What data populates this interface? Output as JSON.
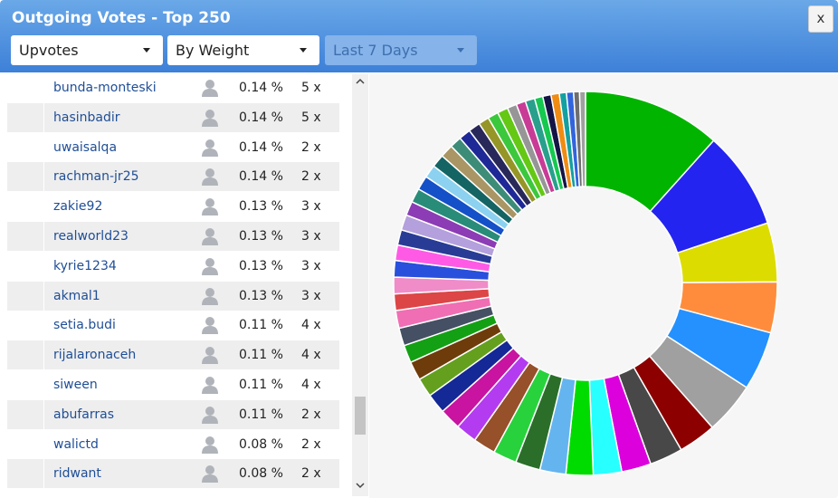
{
  "header": {
    "title": "Outgoing Votes - Top 250",
    "close": "x"
  },
  "filters": [
    "Upvotes",
    "By Weight",
    "Last 7 Days"
  ],
  "table": {
    "rows": [
      [
        "bunda-monteski",
        "0.14 %",
        "5 x"
      ],
      [
        "hasinbadir",
        "0.14 %",
        "5 x"
      ],
      [
        "uwaisalqa",
        "0.14 %",
        "2 x"
      ],
      [
        "rachman-jr25",
        "0.14 %",
        "2 x"
      ],
      [
        "zakie92",
        "0.13 %",
        "3 x"
      ],
      [
        "realworld23",
        "0.13 %",
        "3 x"
      ],
      [
        "kyrie1234",
        "0.13 %",
        "3 x"
      ],
      [
        "akmal1",
        "0.13 %",
        "3 x"
      ],
      [
        "setia.budi",
        "0.11 %",
        "4 x"
      ],
      [
        "rijalaronaceh",
        "0.11 %",
        "4 x"
      ],
      [
        "siween",
        "0.11 %",
        "4 x"
      ],
      [
        "abufarras",
        "0.11 %",
        "2 x"
      ],
      [
        "walictd",
        "0.08 %",
        "2 x"
      ],
      [
        "ridwant",
        "0.08 %",
        "2 x"
      ]
    ]
  },
  "chart_data": {
    "type": "pie",
    "values": [
      11.7,
      8.3,
      5.0,
      4.3,
      5.0,
      4.4,
      3.2,
      2.8,
      2.5,
      2.4,
      2.3,
      2.2,
      2.1,
      2.0,
      1.9,
      1.8,
      1.8,
      1.7,
      1.6,
      1.6,
      1.5,
      1.5,
      1.5,
      1.4,
      1.4,
      1.4,
      1.3,
      1.3,
      1.3,
      1.2,
      1.2,
      1.2,
      1.1,
      1.1,
      1.1,
      1.0,
      1.0,
      1.0,
      0.9,
      0.9,
      0.9,
      0.8,
      0.8,
      0.8,
      0.7,
      0.7,
      0.7,
      0.6,
      0.6,
      0.5,
      0.5
    ],
    "colors": [
      "#00b400",
      "#2424f0",
      "#dcdc00",
      "#ff8c3c",
      "#2491ff",
      "#a0a0a0",
      "#8c0000",
      "#484848",
      "#dc00dc",
      "#28ffff",
      "#00dc00",
      "#64b4f0",
      "#2a6e2a",
      "#28d23c",
      "#96502a",
      "#b43cf0",
      "#c814a0",
      "#142896",
      "#64a01e",
      "#6e3c0a",
      "#14a014",
      "#465064",
      "#f06eb4",
      "#dc4646",
      "#f08cc8",
      "#2850dc",
      "#ff5ae6",
      "#283c96",
      "#b4a0dc",
      "#8c3cb4",
      "#288c78",
      "#1450c8",
      "#8cd2f0",
      "#146464",
      "#aa9664",
      "#3c8c78",
      "#1e2896",
      "#28285a",
      "#969628",
      "#3cc83c",
      "#64c814",
      "#969696",
      "#c83c96",
      "#28a08c",
      "#14c850",
      "#141446",
      "#f08c14",
      "#14a0a0",
      "#3264dc",
      "#6e6e6e",
      "#a0a0a0"
    ]
  }
}
